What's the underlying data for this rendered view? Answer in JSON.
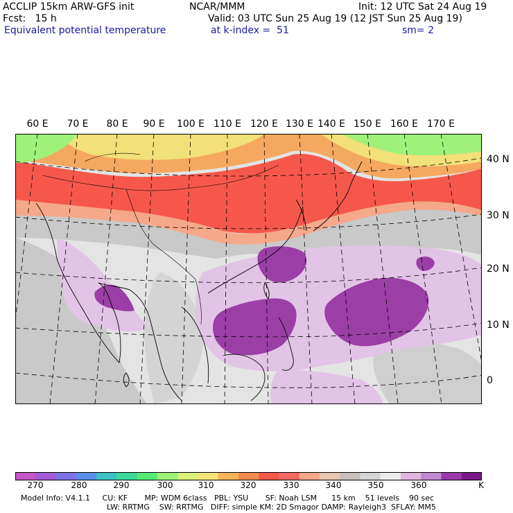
{
  "header": {
    "line1_left": "ACCLIP 15km ARW-GFS init",
    "line1_center": "NCAR/MMM",
    "line1_right": "Init: 12 UTC Sat 24 Aug 19",
    "line2_left": "Fcst:   15 h",
    "line2_right": "Valid: 03 UTC Sun 25 Aug 19 (12 JST Sun 25 Aug 19)",
    "line3_left": "Equivalent potential temperature",
    "line3_center": "at k-index =  51",
    "line3_right": "sm= 2"
  },
  "map": {
    "longitude_labels": [
      "60 E",
      "70 E",
      "80 E",
      "90 E",
      "100 E",
      "110 E",
      "120 E",
      "130 E",
      "140 E",
      "150 E",
      "160 E",
      "170 E"
    ],
    "latitude_labels": [
      "40 N",
      "30 N",
      "20 N",
      "10 N",
      "0"
    ]
  },
  "colorbar": {
    "labels": [
      "270",
      "280",
      "290",
      "300",
      "310",
      "320",
      "330",
      "340",
      "350",
      "360"
    ],
    "unit": "K",
    "colors": [
      "#c757c7",
      "#a35ad6",
      "#7f72e6",
      "#5a8de8",
      "#3cc2c2",
      "#3cd99a",
      "#58eb78",
      "#9ef27a",
      "#d8f27a",
      "#f5e37a",
      "#f5b45a",
      "#f58a50",
      "#f55a48",
      "#f56a60",
      "#f5a88a",
      "#e8c6b0",
      "#c8c0bc",
      "#d6d6d6",
      "#ececec",
      "#e0b6e0",
      "#c088d0",
      "#9a3aaa",
      "#7a1a8a"
    ]
  },
  "model_info": {
    "line1": "Model Info: V4.1.1     CU: KF       MP: WDM 6class   PBL: YSU       SF: Noah LSM      15 km    51 levels    90 sec",
    "line2": "LW: RRTMG    SW: RRTMG   DIFF: simple KM: 2D Smagor DAMP: Rayleigh3  SFLAY: MM5"
  }
}
